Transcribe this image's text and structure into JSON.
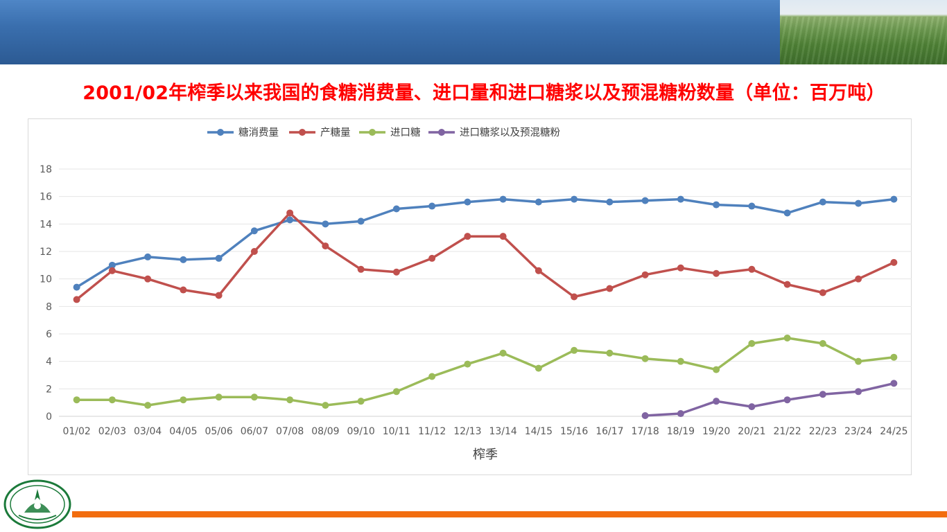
{
  "slide": {
    "title": "2001/02年榨季以来我国的食糖消费量、进口量和进口糖浆以及预混糖粉数量（单位：百万吨）",
    "colors": {
      "banner": "#3a6fae",
      "title": "#ff0000",
      "bottom_bar": "#f26d0f",
      "logo": "#1b7a3a"
    }
  },
  "chart_data": {
    "type": "line",
    "title": "",
    "xlabel": "榨季",
    "ylabel": "",
    "ylim": [
      0,
      18
    ],
    "yticks": [
      0,
      2,
      4,
      6,
      8,
      10,
      12,
      14,
      16,
      18
    ],
    "grid": true,
    "legend_position": "top",
    "categories": [
      "01/02",
      "02/03",
      "03/04",
      "04/05",
      "05/06",
      "06/07",
      "07/08",
      "08/09",
      "09/10",
      "10/11",
      "11/12",
      "12/13",
      "13/14",
      "14/15",
      "15/16",
      "16/17",
      "17/18",
      "18/19",
      "19/20",
      "20/21",
      "21/22",
      "22/23",
      "23/24",
      "24/25"
    ],
    "series": [
      {
        "name": "糖消费量",
        "color": "#4f81bd",
        "values": [
          9.4,
          11.0,
          11.6,
          11.4,
          11.5,
          13.5,
          14.3,
          14.0,
          14.2,
          15.1,
          15.3,
          15.6,
          15.8,
          15.6,
          15.8,
          15.6,
          15.7,
          15.8,
          15.4,
          15.3,
          14.8,
          15.6,
          15.5,
          15.8
        ]
      },
      {
        "name": "产糖量",
        "color": "#c0504d",
        "values": [
          8.5,
          10.6,
          10.0,
          9.2,
          8.8,
          12.0,
          14.8,
          12.4,
          10.7,
          10.5,
          11.5,
          13.1,
          13.1,
          10.6,
          8.7,
          9.3,
          10.3,
          10.8,
          10.4,
          10.7,
          9.6,
          9.0,
          10.0,
          11.2
        ]
      },
      {
        "name": "进口糖",
        "color": "#9bbb59",
        "values": [
          1.2,
          1.2,
          0.8,
          1.2,
          1.4,
          1.4,
          1.2,
          0.8,
          1.1,
          1.8,
          2.9,
          3.8,
          4.6,
          3.5,
          4.8,
          4.6,
          4.2,
          4.0,
          3.4,
          5.3,
          5.7,
          5.3,
          4.0,
          4.3
        ]
      },
      {
        "name": "进口糖浆以及预混糖粉",
        "color": "#8064a2",
        "values": [
          null,
          null,
          null,
          null,
          null,
          null,
          null,
          null,
          null,
          null,
          null,
          null,
          null,
          null,
          null,
          null,
          0.05,
          0.2,
          1.1,
          0.7,
          1.2,
          1.6,
          1.8,
          2.4
        ]
      }
    ]
  }
}
